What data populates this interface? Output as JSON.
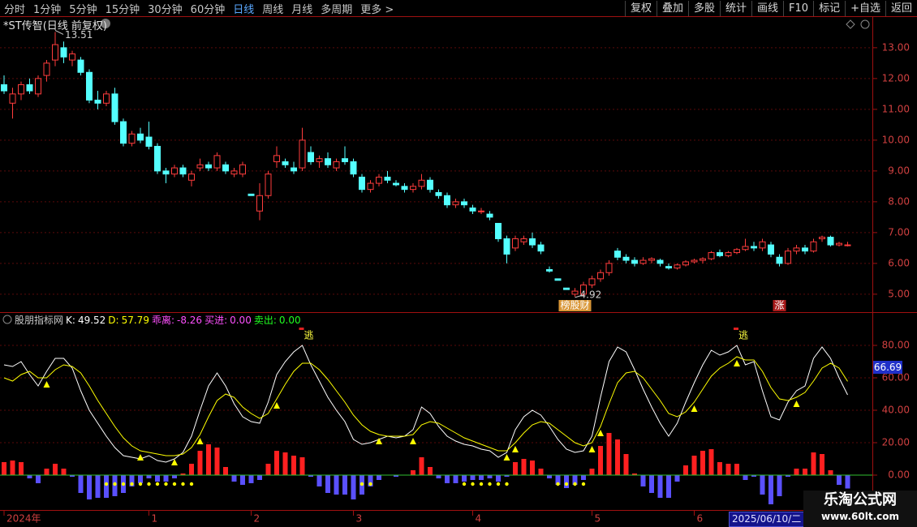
{
  "toolbar": {
    "left": [
      "分时",
      "1分钟",
      "5分钟",
      "15分钟",
      "30分钟",
      "60分钟",
      "日线",
      "周线",
      "月线",
      "多周期",
      "更多 >"
    ],
    "active": 6,
    "right": [
      "复权",
      "叠加",
      "多股",
      "统计",
      "画线",
      "F10",
      "标记",
      "+自选",
      "返回"
    ]
  },
  "chart_data": [
    {
      "type": "candlestick",
      "title": "*ST传智(日线 前复权)",
      "ylim": [
        4.47,
        13.97
      ],
      "yticks": [
        {
          "value": 5,
          "label": "5.00"
        },
        {
          "value": 6,
          "label": "6.00"
        },
        {
          "value": 7,
          "label": "7.00"
        },
        {
          "value": 8,
          "label": "8.00"
        },
        {
          "value": 9,
          "label": "9.00"
        },
        {
          "value": 10,
          "label": "10.00"
        },
        {
          "value": 11,
          "label": "11.00"
        },
        {
          "value": 12,
          "label": "12.00"
        },
        {
          "value": 13,
          "label": "13.00"
        }
      ],
      "grid": true,
      "up_color": "#ff3c3c",
      "down_color": "#54ffff",
      "categories": [
        "2024年",
        null,
        null,
        null,
        null,
        null,
        null,
        null,
        null,
        null,
        null,
        null,
        null,
        null,
        null,
        null,
        null,
        "1",
        null,
        null,
        null,
        null,
        null,
        null,
        null,
        null,
        null,
        null,
        null,
        "2",
        null,
        null,
        null,
        null,
        null,
        null,
        null,
        null,
        null,
        null,
        null,
        "3",
        null,
        null,
        null,
        null,
        null,
        null,
        null,
        null,
        null,
        null,
        null,
        null,
        null,
        "4",
        null,
        null,
        null,
        null,
        null,
        null,
        null,
        null,
        null,
        null,
        null,
        null,
        null,
        "5",
        null,
        null,
        null,
        null,
        null,
        null,
        null,
        null,
        null,
        null,
        null,
        "6",
        null,
        null,
        null,
        null,
        null,
        null,
        null,
        null,
        null,
        null,
        null,
        null,
        null,
        null,
        null,
        null,
        null,
        null
      ],
      "cursor_date": "2025/06/10/二",
      "candles": [
        [
          11.8,
          12.1,
          11.5,
          11.6
        ],
        [
          11.2,
          11.7,
          10.7,
          11.5
        ],
        [
          11.5,
          11.9,
          11.3,
          11.8
        ],
        [
          11.8,
          12.0,
          11.5,
          11.6
        ],
        [
          11.5,
          12.1,
          11.4,
          12.0
        ],
        [
          12.1,
          12.6,
          11.9,
          12.5
        ],
        [
          12.6,
          13.51,
          12.4,
          13.1
        ],
        [
          13.0,
          13.2,
          12.5,
          12.7
        ],
        [
          12.6,
          12.9,
          12.4,
          12.8
        ],
        [
          12.6,
          12.7,
          12.1,
          12.2
        ],
        [
          12.2,
          12.3,
          11.2,
          11.3
        ],
        [
          11.3,
          11.6,
          11.0,
          11.2
        ],
        [
          11.2,
          11.6,
          11.1,
          11.5
        ],
        [
          11.5,
          11.7,
          10.5,
          10.6
        ],
        [
          10.6,
          10.7,
          9.8,
          9.9
        ],
        [
          9.9,
          10.3,
          9.8,
          10.2
        ],
        [
          10.2,
          10.4,
          9.9,
          10.0
        ],
        [
          10.1,
          10.6,
          9.7,
          9.8
        ],
        [
          9.8,
          9.9,
          8.9,
          9.0
        ],
        [
          9.0,
          9.1,
          8.6,
          8.9
        ],
        [
          8.9,
          9.2,
          8.8,
          9.1
        ],
        [
          9.1,
          9.2,
          8.8,
          8.9
        ],
        [
          8.7,
          9.0,
          8.5,
          8.9
        ],
        [
          9.1,
          9.4,
          9.0,
          9.2
        ],
        [
          9.2,
          9.3,
          9.0,
          9.1
        ],
        [
          9.1,
          9.6,
          9.0,
          9.5
        ],
        [
          9.2,
          9.3,
          8.9,
          9.0
        ],
        [
          8.9,
          9.1,
          8.8,
          9.0
        ],
        [
          8.9,
          9.3,
          8.8,
          9.2
        ],
        [
          8.25,
          8.25,
          8.2,
          8.2
        ],
        [
          7.7,
          8.6,
          7.4,
          8.2
        ],
        [
          8.2,
          9.0,
          8.1,
          8.9
        ],
        [
          9.3,
          9.8,
          9.1,
          9.5
        ],
        [
          9.3,
          9.4,
          9.1,
          9.2
        ],
        [
          9.1,
          9.3,
          8.9,
          9.0
        ],
        [
          9.1,
          10.4,
          9.0,
          10.0
        ],
        [
          9.6,
          9.8,
          9.2,
          9.3
        ],
        [
          9.3,
          9.5,
          9.1,
          9.4
        ],
        [
          9.4,
          9.6,
          9.1,
          9.2
        ],
        [
          9.1,
          9.4,
          9.0,
          9.3
        ],
        [
          9.4,
          9.8,
          9.2,
          9.3
        ],
        [
          9.3,
          9.4,
          8.8,
          8.9
        ],
        [
          8.8,
          8.9,
          8.3,
          8.4
        ],
        [
          8.4,
          8.7,
          8.3,
          8.6
        ],
        [
          8.6,
          8.9,
          8.5,
          8.8
        ],
        [
          8.8,
          9.0,
          8.6,
          8.7
        ],
        [
          8.6,
          8.7,
          8.5,
          8.55
        ],
        [
          8.5,
          8.6,
          8.3,
          8.4
        ],
        [
          8.4,
          8.6,
          8.3,
          8.5
        ],
        [
          8.5,
          8.9,
          8.4,
          8.7
        ],
        [
          8.7,
          8.8,
          8.3,
          8.4
        ],
        [
          8.3,
          8.4,
          8.1,
          8.2
        ],
        [
          8.2,
          8.3,
          7.8,
          7.9
        ],
        [
          7.9,
          8.1,
          7.8,
          8.0
        ],
        [
          8.0,
          8.1,
          7.8,
          7.9
        ],
        [
          7.8,
          7.9,
          7.6,
          7.7
        ],
        [
          7.7,
          7.8,
          7.6,
          7.7
        ],
        [
          7.6,
          7.7,
          7.4,
          7.5
        ],
        [
          7.3,
          7.3,
          6.7,
          6.8
        ],
        [
          6.8,
          6.9,
          6.0,
          6.3
        ],
        [
          6.5,
          6.9,
          6.4,
          6.8
        ],
        [
          6.7,
          6.9,
          6.6,
          6.8
        ],
        [
          6.8,
          7.0,
          6.5,
          6.6
        ],
        [
          6.6,
          6.7,
          6.3,
          6.4
        ],
        [
          5.8,
          5.9,
          5.7,
          5.75
        ],
        [
          5.5,
          5.5,
          5.45,
          5.45
        ],
        [
          5.2,
          5.2,
          5.15,
          5.15
        ],
        [
          5.0,
          5.2,
          4.92,
          5.1
        ],
        [
          5.0,
          5.4,
          4.95,
          5.3
        ],
        [
          5.3,
          5.6,
          5.2,
          5.5
        ],
        [
          5.5,
          5.8,
          5.4,
          5.7
        ],
        [
          5.7,
          6.1,
          5.6,
          6.0
        ],
        [
          6.4,
          6.5,
          6.1,
          6.2
        ],
        [
          6.2,
          6.3,
          6.0,
          6.1
        ],
        [
          6.1,
          6.2,
          5.9,
          6.0
        ],
        [
          6.0,
          6.2,
          5.95,
          6.1
        ],
        [
          6.1,
          6.2,
          6.0,
          6.15
        ],
        [
          6.1,
          6.15,
          5.9,
          6.0
        ],
        [
          5.9,
          6.0,
          5.8,
          5.85
        ],
        [
          5.85,
          6.0,
          5.8,
          5.95
        ],
        [
          5.95,
          6.1,
          5.9,
          6.05
        ],
        [
          6.05,
          6.15,
          6.0,
          6.1
        ],
        [
          6.1,
          6.2,
          6.0,
          6.15
        ],
        [
          6.15,
          6.4,
          6.1,
          6.35
        ],
        [
          6.35,
          6.45,
          6.2,
          6.25
        ],
        [
          6.25,
          6.4,
          6.2,
          6.35
        ],
        [
          6.35,
          6.5,
          6.3,
          6.45
        ],
        [
          6.45,
          6.8,
          6.4,
          6.55
        ],
        [
          6.55,
          6.7,
          6.4,
          6.5
        ],
        [
          6.5,
          6.8,
          6.4,
          6.7
        ],
        [
          6.6,
          6.7,
          6.2,
          6.3
        ],
        [
          6.2,
          6.3,
          5.9,
          6.0
        ],
        [
          6.0,
          6.5,
          5.95,
          6.4
        ],
        [
          6.4,
          6.6,
          6.3,
          6.5
        ],
        [
          6.5,
          6.6,
          6.3,
          6.4
        ],
        [
          6.4,
          6.8,
          6.35,
          6.7
        ],
        [
          6.8,
          6.9,
          6.7,
          6.85
        ],
        [
          6.85,
          6.9,
          6.55,
          6.6
        ],
        [
          6.6,
          6.7,
          6.55,
          6.65
        ],
        [
          6.6,
          6.7,
          6.55,
          6.6
        ]
      ],
      "tags": [
        {
          "label": "榜股财",
          "index": 67,
          "color": "#ffb040"
        },
        {
          "label": "涨",
          "index": 91,
          "color": "#c82020"
        }
      ]
    },
    {
      "type": "line",
      "title": "股朋指标网",
      "ylim": [
        -21,
        97
      ],
      "yticks": [
        {
          "value": 0,
          "label": "0.00"
        },
        {
          "value": 20,
          "label": "20.00"
        },
        {
          "value": 40,
          "label": "40.00"
        },
        {
          "value": 60,
          "label": "60.00"
        },
        {
          "value": 80,
          "label": "80.00"
        }
      ],
      "grid": true,
      "series": [
        {
          "name": "K:",
          "color": "#ffffff",
          "values": [
            68,
            67,
            70,
            62,
            55,
            64,
            72,
            72,
            66,
            52,
            40,
            32,
            24,
            17,
            12,
            11,
            10,
            12,
            9,
            8,
            10,
            14,
            24,
            40,
            55,
            63,
            55,
            44,
            36,
            33,
            32,
            45,
            62,
            70,
            76,
            80,
            68,
            58,
            48,
            40,
            33,
            22,
            19,
            20,
            22,
            24,
            23,
            24,
            28,
            42,
            38,
            30,
            24,
            21,
            19,
            18,
            16,
            15,
            11,
            14,
            28,
            36,
            40,
            37,
            30,
            22,
            16,
            14,
            15,
            24,
            48,
            70,
            79,
            76,
            65,
            53,
            42,
            32,
            24,
            32,
            45,
            57,
            68,
            77,
            74,
            76,
            80,
            68,
            70,
            52,
            36,
            34,
            45,
            52,
            55,
            72,
            79,
            72,
            60,
            49.52
          ]
        },
        {
          "name": "D:",
          "color": "#ffff00",
          "values": [
            60,
            58,
            62,
            64,
            60,
            60,
            65,
            68,
            67,
            63,
            55,
            46,
            38,
            30,
            23,
            18,
            15,
            14,
            13,
            12,
            12,
            13,
            17,
            25,
            36,
            46,
            50,
            48,
            42,
            38,
            35,
            38,
            47,
            56,
            64,
            69,
            69,
            65,
            59,
            52,
            45,
            37,
            31,
            27,
            25,
            24,
            24,
            24,
            25,
            31,
            33,
            32,
            29,
            26,
            23,
            21,
            19,
            17,
            15,
            15,
            20,
            26,
            31,
            33,
            32,
            28,
            24,
            20,
            18,
            20,
            30,
            44,
            57,
            63,
            64,
            60,
            53,
            46,
            38,
            36,
            39,
            45,
            53,
            61,
            66,
            69,
            73,
            71,
            71,
            64,
            54,
            47,
            46,
            48,
            51,
            58,
            66,
            69,
            66,
            57.79
          ]
        }
      ],
      "bars": {
        "name": "乖离:",
        "color": "#ff50ff",
        "up_color": "#ff2020",
        "down_color": "#5a50ff",
        "values": [
          8,
          9,
          8,
          -2,
          -5,
          4,
          7,
          4,
          -1,
          -11,
          -15,
          -14,
          -14,
          -13,
          -11,
          -7,
          -5,
          -2,
          -4,
          -4,
          -2,
          1,
          7,
          15,
          19,
          17,
          5,
          -4,
          -6,
          -5,
          -3,
          7,
          15,
          14,
          12,
          11,
          -1,
          -7,
          -11,
          -12,
          -12,
          -15,
          -12,
          -7,
          -3,
          0,
          -1,
          0,
          3,
          11,
          5,
          -2,
          -5,
          -5,
          -4,
          -3,
          -3,
          -2,
          -4,
          -1,
          8,
          10,
          9,
          4,
          -2,
          -6,
          -8,
          -6,
          -3,
          4,
          18,
          26,
          22,
          13,
          1,
          -7,
          -11,
          -14,
          -14,
          -4,
          6,
          12,
          15,
          16,
          8,
          7,
          7,
          -3,
          -1,
          -12,
          -18,
          -13,
          -1,
          4,
          4,
          14,
          13,
          3,
          -6,
          -8.26
        ]
      },
      "readouts": [
        {
          "name": "买进:",
          "color": "#ff50ff",
          "value": 0,
          "value_label": "0.00"
        },
        {
          "name": "卖出:",
          "color": "#20ff20",
          "value": 0,
          "value_label": "0.00"
        }
      ],
      "axis_marker": 66.69,
      "buy_markers": [
        5,
        16,
        20,
        23,
        32,
        44,
        48,
        59,
        60,
        69,
        70,
        81,
        86,
        93
      ],
      "dot_markers": [
        12,
        13,
        14,
        15,
        16,
        17,
        18,
        19,
        20,
        21,
        22,
        42,
        43,
        54,
        55,
        56,
        57,
        58,
        59,
        65,
        66,
        67,
        68
      ],
      "signals": {
        "label": "逃",
        "indices": [
          35,
          86
        ]
      }
    }
  ],
  "watermark": {
    "name": "乐淘公式网",
    "url": "www.60lt.com"
  }
}
